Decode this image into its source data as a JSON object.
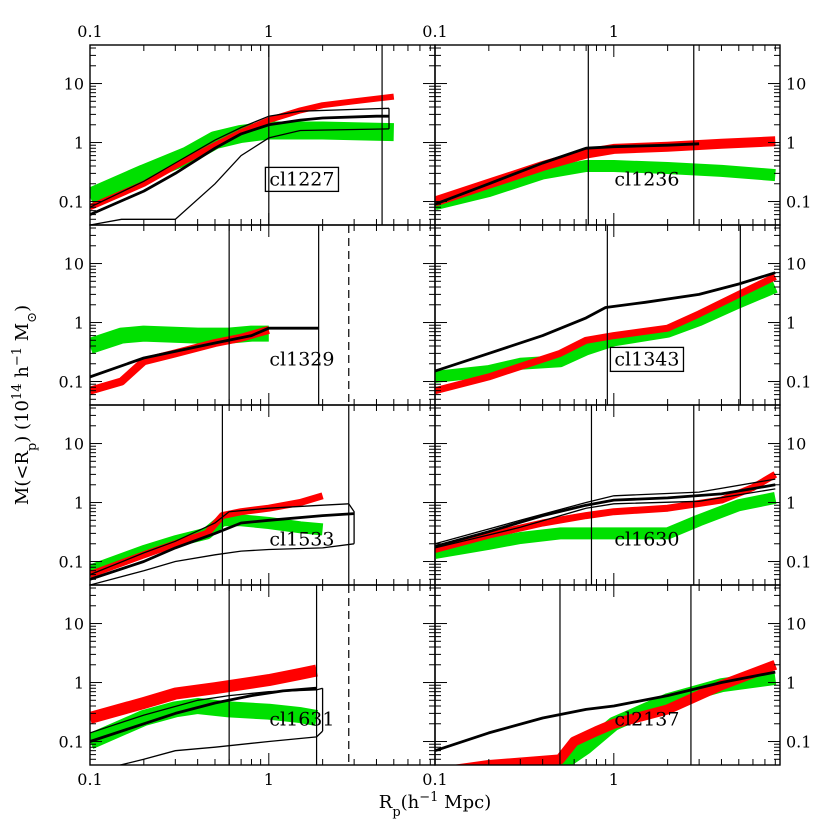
{
  "figure": {
    "ylabel": "M(<R_p)  (10^14 h^-1 M_⊙)",
    "ylabel_parts": {
      "base": "M(<R",
      "sub": "p",
      "mid": ")  (10",
      "sup1": "14",
      "mid2": " h",
      "sup2": "−1",
      "mid3": " M",
      "sun": "⊙",
      "end": ")"
    },
    "xlabel_parts": {
      "base": "R",
      "sub": "p",
      "rest": "(h",
      "sup": "−1",
      "end": " Mpc)"
    },
    "xlabel": "R_p(h^-1 Mpc)"
  },
  "chart_data": {
    "type": "line",
    "xscale": "log",
    "yscale": "log",
    "xlim": [
      0.1,
      8.5
    ],
    "ylim": [
      0.04,
      45
    ],
    "x_ticks": [
      0.1,
      1
    ],
    "x_tick_labels": [
      "0.1",
      "1"
    ],
    "y_ticks": [
      0.1,
      1,
      10
    ],
    "y_tick_labels": [
      "0.1",
      "1",
      "10"
    ],
    "grid": false,
    "colors": {
      "red": "#ff0000",
      "green": "#00e000",
      "black": "#000000"
    },
    "panels": [
      {
        "name": "cl1227",
        "boxed": true,
        "vlines": [
          1.0,
          4.3
        ],
        "dashed_vlines": [],
        "red": [
          [
            0.1,
            0.08
          ],
          [
            0.2,
            0.2
          ],
          [
            0.3,
            0.4
          ],
          [
            0.5,
            0.9
          ],
          [
            0.7,
            1.5
          ],
          [
            1,
            2.4
          ],
          [
            1.5,
            3.5
          ],
          [
            2,
            4.3
          ],
          [
            3,
            5
          ],
          [
            5,
            6
          ]
        ],
        "red_width": 6,
        "green": [
          [
            0.1,
            0.12
          ],
          [
            0.2,
            0.3
          ],
          [
            0.35,
            0.6
          ],
          [
            0.5,
            1.1
          ],
          [
            0.7,
            1.4
          ],
          [
            1,
            1.6
          ],
          [
            2,
            1.6
          ],
          [
            3,
            1.55
          ],
          [
            5,
            1.5
          ]
        ],
        "green_width": 18,
        "black_thick": [
          [
            0.1,
            0.06
          ],
          [
            0.2,
            0.15
          ],
          [
            0.3,
            0.3
          ],
          [
            0.5,
            0.8
          ],
          [
            0.7,
            1.4
          ],
          [
            1,
            2
          ],
          [
            1.5,
            2.4
          ],
          [
            2,
            2.6
          ],
          [
            4,
            2.8
          ],
          [
            4.7,
            2.8
          ]
        ],
        "black_thin": [
          [
            [
              0.1,
              0.08
            ],
            [
              0.2,
              0.22
            ],
            [
              0.3,
              0.45
            ],
            [
              0.5,
              1.1
            ],
            [
              0.7,
              1.8
            ],
            [
              1,
              2.8
            ],
            [
              1.5,
              3.4
            ],
            [
              4.7,
              3.8
            ]
          ],
          [
            [
              0.1,
              0.04
            ],
            [
              0.15,
              0.05
            ],
            [
              0.3,
              0.05
            ],
            [
              0.5,
              0.2
            ],
            [
              0.7,
              0.6
            ],
            [
              1,
              1.2
            ],
            [
              1.5,
              1.6
            ],
            [
              4.7,
              1.7
            ]
          ],
          [
            [
              4.7,
              1.7
            ],
            [
              4.7,
              3.8
            ]
          ]
        ]
      },
      {
        "name": "cl1236",
        "boxed": false,
        "vlines": [
          0.72,
          2.8
        ],
        "dashed_vlines": [],
        "red": [
          [
            0.1,
            0.1
          ],
          [
            0.2,
            0.2
          ],
          [
            0.4,
            0.4
          ],
          [
            0.7,
            0.65
          ],
          [
            1,
            0.78
          ],
          [
            2,
            0.85
          ],
          [
            4,
            0.95
          ],
          [
            8,
            1.05
          ]
        ],
        "red_width": 10,
        "green": [
          [
            0.1,
            0.09
          ],
          [
            0.2,
            0.15
          ],
          [
            0.4,
            0.3
          ],
          [
            0.7,
            0.4
          ],
          [
            1,
            0.4
          ],
          [
            2,
            0.37
          ],
          [
            4,
            0.33
          ],
          [
            8,
            0.28
          ]
        ],
        "green_width": 12,
        "black_thick": [
          [
            0.1,
            0.09
          ],
          [
            0.2,
            0.2
          ],
          [
            0.4,
            0.45
          ],
          [
            0.7,
            0.8
          ],
          [
            1,
            0.85
          ],
          [
            2,
            0.9
          ],
          [
            3,
            0.95
          ]
        ],
        "black_thin": []
      },
      {
        "name": "cl1329",
        "boxed": false,
        "vlines": [
          0.6,
          1.9
        ],
        "dashed_vlines": [
          2.8
        ],
        "red": [
          [
            0.1,
            0.07
          ],
          [
            0.15,
            0.1
          ],
          [
            0.2,
            0.22
          ],
          [
            0.3,
            0.3
          ],
          [
            0.5,
            0.45
          ],
          [
            0.7,
            0.55
          ],
          [
            1,
            0.75
          ]
        ],
        "red_width": 8,
        "green": [
          [
            0.1,
            0.4
          ],
          [
            0.15,
            0.6
          ],
          [
            0.2,
            0.65
          ],
          [
            0.4,
            0.6
          ],
          [
            0.6,
            0.6
          ],
          [
            0.8,
            0.65
          ],
          [
            1,
            0.65
          ]
        ],
        "green_width": 16,
        "black_thick": [
          [
            0.1,
            0.12
          ],
          [
            0.2,
            0.25
          ],
          [
            0.5,
            0.45
          ],
          [
            0.8,
            0.6
          ],
          [
            1,
            0.8
          ],
          [
            1.9,
            0.8
          ]
        ],
        "black_thin": []
      },
      {
        "name": "cl1343",
        "boxed": true,
        "vlines": [
          0.92,
          5.1
        ],
        "dashed_vlines": [],
        "red": [
          [
            0.1,
            0.07
          ],
          [
            0.2,
            0.12
          ],
          [
            0.3,
            0.18
          ],
          [
            0.5,
            0.3
          ],
          [
            0.7,
            0.5
          ],
          [
            1,
            0.6
          ],
          [
            2,
            0.8
          ],
          [
            3,
            1.4
          ],
          [
            5,
            3
          ],
          [
            8,
            6
          ]
        ],
        "red_width": 7,
        "green": [
          [
            0.1,
            0.12
          ],
          [
            0.2,
            0.15
          ],
          [
            0.3,
            0.2
          ],
          [
            0.5,
            0.22
          ],
          [
            0.7,
            0.35
          ],
          [
            1,
            0.5
          ],
          [
            2,
            0.7
          ],
          [
            3,
            1.1
          ],
          [
            5,
            2.2
          ],
          [
            8,
            4
          ]
        ],
        "green_width": 12,
        "black_thick": [
          [
            0.1,
            0.15
          ],
          [
            0.2,
            0.3
          ],
          [
            0.4,
            0.6
          ],
          [
            0.7,
            1.2
          ],
          [
            0.9,
            1.8
          ],
          [
            1.5,
            2.2
          ],
          [
            3,
            3
          ],
          [
            5,
            4.5
          ],
          [
            8,
            7
          ]
        ],
        "black_thin": []
      },
      {
        "name": "cl1533",
        "boxed": false,
        "vlines": [
          0.55,
          2.8
        ],
        "dashed_vlines": [],
        "red": [
          [
            0.1,
            0.06
          ],
          [
            0.2,
            0.13
          ],
          [
            0.3,
            0.2
          ],
          [
            0.45,
            0.3
          ],
          [
            0.55,
            0.6
          ],
          [
            0.7,
            0.7
          ],
          [
            1,
            0.8
          ],
          [
            1.5,
            1
          ],
          [
            2,
            1.3
          ]
        ],
        "red_width": 7,
        "green": [
          [
            0.1,
            0.07
          ],
          [
            0.2,
            0.15
          ],
          [
            0.3,
            0.22
          ],
          [
            0.45,
            0.3
          ],
          [
            0.55,
            0.5
          ],
          [
            0.7,
            0.5
          ],
          [
            1,
            0.45
          ],
          [
            1.5,
            0.38
          ],
          [
            2,
            0.35
          ]
        ],
        "green_width": 12,
        "black_thick": [
          [
            0.1,
            0.05
          ],
          [
            0.2,
            0.1
          ],
          [
            0.3,
            0.17
          ],
          [
            0.5,
            0.3
          ],
          [
            0.7,
            0.45
          ],
          [
            1,
            0.5
          ],
          [
            2,
            0.6
          ],
          [
            3,
            0.65
          ]
        ],
        "black_thin": [
          [
            [
              0.1,
              0.06
            ],
            [
              0.2,
              0.14
            ],
            [
              0.3,
              0.22
            ],
            [
              0.5,
              0.45
            ],
            [
              0.6,
              0.7
            ],
            [
              1,
              0.8
            ],
            [
              2,
              0.9
            ],
            [
              2.8,
              0.95
            ]
          ],
          [
            [
              0.1,
              0.04
            ],
            [
              0.2,
              0.07
            ],
            [
              0.3,
              0.1
            ],
            [
              0.5,
              0.13
            ],
            [
              0.7,
              0.15
            ],
            [
              1,
              0.16
            ],
            [
              2,
              0.17
            ],
            [
              3,
              0.2
            ]
          ],
          [
            [
              2.8,
              0.95
            ],
            [
              3,
              0.7
            ],
            [
              3,
              0.2
            ]
          ]
        ]
      },
      {
        "name": "cl1630",
        "boxed": false,
        "vlines": [
          0.75,
          2.8
        ],
        "dashed_vlines": [],
        "red": [
          [
            0.1,
            0.16
          ],
          [
            0.2,
            0.28
          ],
          [
            0.4,
            0.45
          ],
          [
            0.7,
            0.6
          ],
          [
            1,
            0.7
          ],
          [
            2,
            0.8
          ],
          [
            4,
            1.1
          ],
          [
            6,
            1.8
          ],
          [
            8,
            3
          ]
        ],
        "red_width": 7,
        "green": [
          [
            0.1,
            0.14
          ],
          [
            0.2,
            0.2
          ],
          [
            0.3,
            0.25
          ],
          [
            0.5,
            0.3
          ],
          [
            1,
            0.3
          ],
          [
            2,
            0.3
          ],
          [
            3,
            0.5
          ],
          [
            5,
            0.9
          ],
          [
            8,
            1.2
          ]
        ],
        "green_width": 12,
        "black_thick": [
          [
            0.1,
            0.18
          ],
          [
            0.2,
            0.32
          ],
          [
            0.4,
            0.6
          ],
          [
            0.7,
            0.9
          ],
          [
            1,
            1.1
          ],
          [
            2,
            1.2
          ],
          [
            4,
            1.4
          ],
          [
            8,
            2
          ]
        ],
        "black_thin": [
          [
            [
              0.1,
              0.2
            ],
            [
              0.3,
              0.5
            ],
            [
              0.7,
              1
            ],
            [
              1,
              1.3
            ],
            [
              3,
              1.5
            ],
            [
              8,
              2.5
            ]
          ],
          [
            [
              0.1,
              0.17
            ],
            [
              0.3,
              0.38
            ],
            [
              0.7,
              0.8
            ],
            [
              1,
              0.95
            ],
            [
              3,
              1.05
            ],
            [
              8,
              1.7
            ]
          ]
        ]
      },
      {
        "name": "cl1631",
        "boxed": false,
        "vlines": [
          0.6,
          1.85
        ],
        "dashed_vlines": [
          2.8
        ],
        "red": [
          [
            0.1,
            0.25
          ],
          [
            0.2,
            0.45
          ],
          [
            0.3,
            0.65
          ],
          [
            0.5,
            0.8
          ],
          [
            1,
            1.1
          ],
          [
            1.5,
            1.4
          ],
          [
            1.85,
            1.6
          ]
        ],
        "red_width": 12,
        "green": [
          [
            0.1,
            0.1
          ],
          [
            0.2,
            0.25
          ],
          [
            0.3,
            0.35
          ],
          [
            0.4,
            0.4
          ],
          [
            0.6,
            0.35
          ],
          [
            1,
            0.32
          ],
          [
            1.5,
            0.28
          ],
          [
            1.85,
            0.25
          ]
        ],
        "green_width": 16,
        "black_thick": [
          [
            0.1,
            0.1
          ],
          [
            0.2,
            0.2
          ],
          [
            0.3,
            0.3
          ],
          [
            0.5,
            0.45
          ],
          [
            0.8,
            0.6
          ],
          [
            1.2,
            0.72
          ],
          [
            1.85,
            0.8
          ]
        ],
        "black_thin": [
          [
            [
              0.1,
              0.14
            ],
            [
              0.2,
              0.28
            ],
            [
              0.4,
              0.5
            ],
            [
              0.6,
              0.6
            ],
            [
              1,
              0.7
            ],
            [
              1.85,
              0.75
            ],
            [
              2,
              0.8
            ]
          ],
          [
            [
              0.1,
              0.03
            ],
            [
              0.2,
              0.05
            ],
            [
              0.3,
              0.07
            ],
            [
              0.5,
              0.08
            ],
            [
              1,
              0.1
            ],
            [
              1.85,
              0.12
            ],
            [
              2,
              0.15
            ]
          ],
          [
            [
              2,
              0.8
            ],
            [
              2,
              0.15
            ]
          ]
        ]
      },
      {
        "name": "cl2137",
        "boxed": false,
        "vlines": [
          0.5,
          2.7
        ],
        "dashed_vlines": [],
        "red": [
          [
            0.1,
            0.03
          ],
          [
            0.2,
            0.04
          ],
          [
            0.5,
            0.05
          ],
          [
            0.6,
            0.1
          ],
          [
            0.8,
            0.15
          ],
          [
            1,
            0.2
          ],
          [
            2,
            0.35
          ],
          [
            4,
            0.9
          ],
          [
            8,
            2
          ]
        ],
        "red_width": 10,
        "green": [
          [
            0.1,
            0.02
          ],
          [
            0.2,
            0.03
          ],
          [
            0.5,
            0.04
          ],
          [
            0.7,
            0.08
          ],
          [
            1,
            0.2
          ],
          [
            2,
            0.5
          ],
          [
            4,
            0.9
          ],
          [
            8,
            1.2
          ]
        ],
        "green_width": 14,
        "black_thick": [
          [
            0.1,
            0.07
          ],
          [
            0.2,
            0.14
          ],
          [
            0.4,
            0.25
          ],
          [
            0.7,
            0.35
          ],
          [
            1,
            0.4
          ],
          [
            2,
            0.6
          ],
          [
            4,
            1
          ],
          [
            8,
            1.5
          ]
        ],
        "black_thin": []
      }
    ]
  }
}
